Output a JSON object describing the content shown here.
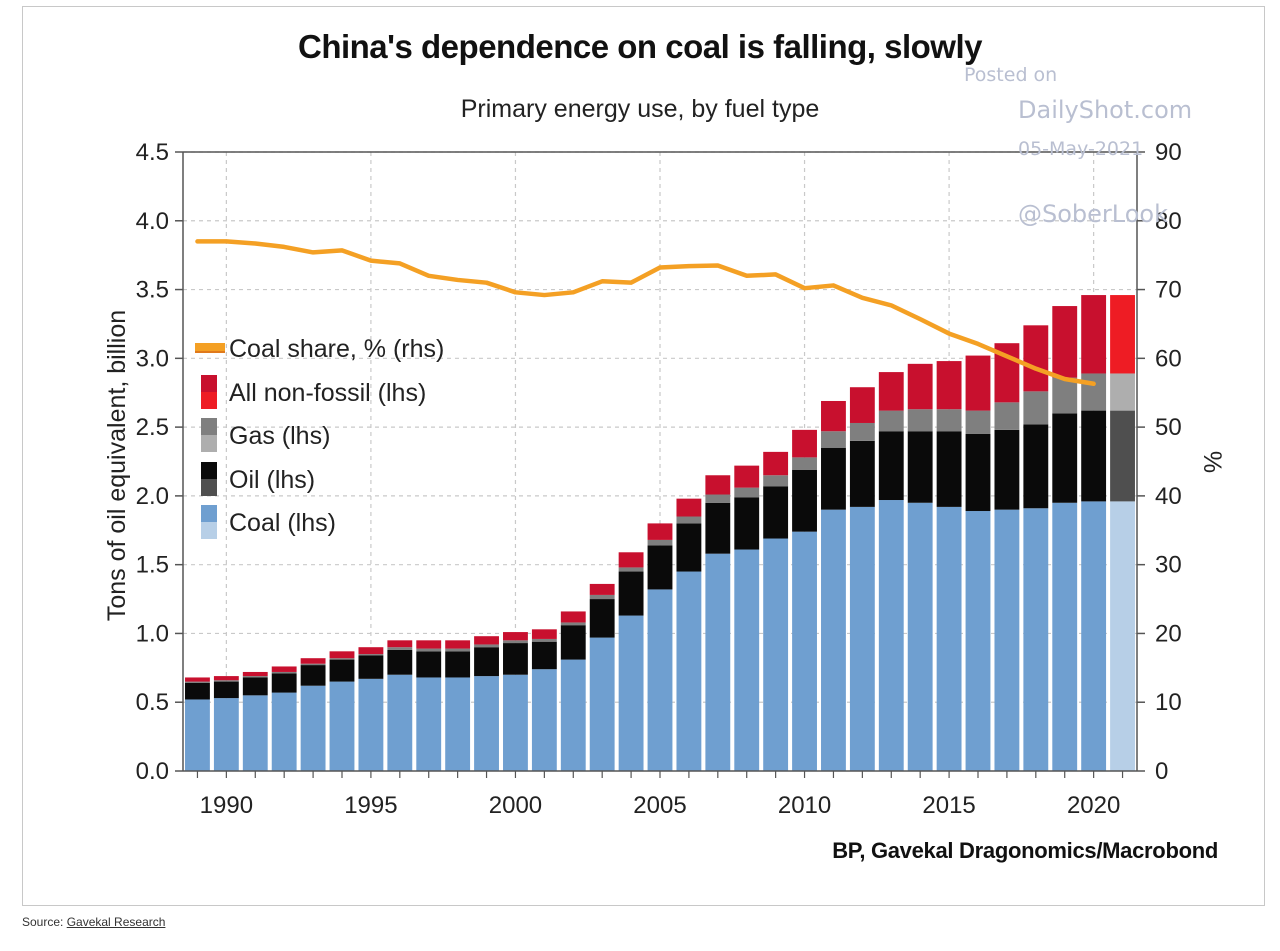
{
  "header": {
    "title": "China's dependence on coal is falling, slowly",
    "subtitle": "Primary energy use, by fuel type"
  },
  "watermark": {
    "line1": "Posted on",
    "line2": "DailyShot.com",
    "line3": "05-May-2021",
    "line4": "@SoberLook"
  },
  "credit": "BP, Gavekal Dragonomics/Macrobond",
  "footer": {
    "prefix": "Source: ",
    "link_text": "Gavekal Research"
  },
  "colors": {
    "coal": "#6f9fd0",
    "coal_proj": "#b7cfe7",
    "oil": "#0a0a0a",
    "oil_proj": "#4f4f4f",
    "gas": "#7f7f7f",
    "gas_proj": "#aeaeae",
    "nonfossil": "#c8102e",
    "nonfossil_proj": "#ee1c24",
    "coal_share": "#f4a024",
    "grid": "#c9c9c9"
  },
  "chart_data": {
    "type": "bar",
    "stacked": true,
    "title": "China's dependence on coal is falling, slowly",
    "subtitle": "Primary energy use, by fuel type",
    "ylabel": "Tons of oil equivalent, billion",
    "y2label": "%",
    "ylim": [
      0,
      4.5
    ],
    "y2lim": [
      0,
      90
    ],
    "yticks": [
      "0.0",
      "0.5",
      "1.0",
      "1.5",
      "2.0",
      "2.5",
      "3.0",
      "3.5",
      "4.0",
      "4.5"
    ],
    "y2ticks": [
      "0",
      "10",
      "20",
      "30",
      "40",
      "50",
      "60",
      "70",
      "80",
      "90"
    ],
    "xticks": [
      "1990",
      "1995",
      "2000",
      "2005",
      "2010",
      "2015",
      "2020"
    ],
    "grid": true,
    "legend_position": "left",
    "years": [
      1989,
      1990,
      1991,
      1992,
      1993,
      1994,
      1995,
      1996,
      1997,
      1998,
      1999,
      2000,
      2001,
      2002,
      2003,
      2004,
      2005,
      2006,
      2007,
      2008,
      2009,
      2010,
      2011,
      2012,
      2013,
      2014,
      2015,
      2016,
      2017,
      2018,
      2019,
      2020,
      2021
    ],
    "series": [
      {
        "name": "Coal (lhs)",
        "key": "coal",
        "axis": "left",
        "values": [
          0.52,
          0.53,
          0.55,
          0.57,
          0.62,
          0.65,
          0.67,
          0.7,
          0.68,
          0.68,
          0.69,
          0.7,
          0.74,
          0.81,
          0.97,
          1.13,
          1.32,
          1.45,
          1.58,
          1.61,
          1.69,
          1.74,
          1.9,
          1.92,
          1.97,
          1.95,
          1.92,
          1.89,
          1.9,
          1.91,
          1.95,
          1.96,
          1.96
        ]
      },
      {
        "name": "Oil (lhs)",
        "key": "oil",
        "axis": "left",
        "values": [
          0.12,
          0.12,
          0.13,
          0.14,
          0.15,
          0.16,
          0.17,
          0.18,
          0.19,
          0.19,
          0.21,
          0.23,
          0.2,
          0.25,
          0.28,
          0.32,
          0.32,
          0.35,
          0.37,
          0.38,
          0.38,
          0.45,
          0.45,
          0.48,
          0.5,
          0.52,
          0.55,
          0.56,
          0.58,
          0.61,
          0.65,
          0.66,
          0.66
        ]
      },
      {
        "name": "Gas (lhs)",
        "key": "gas",
        "axis": "left",
        "values": [
          0.01,
          0.01,
          0.01,
          0.01,
          0.01,
          0.01,
          0.01,
          0.02,
          0.02,
          0.02,
          0.02,
          0.02,
          0.02,
          0.02,
          0.03,
          0.03,
          0.04,
          0.05,
          0.06,
          0.07,
          0.08,
          0.09,
          0.12,
          0.13,
          0.15,
          0.16,
          0.16,
          0.17,
          0.2,
          0.24,
          0.26,
          0.27,
          0.27
        ]
      },
      {
        "name": "All non-fossil (lhs)",
        "key": "nonfossil",
        "axis": "left",
        "values": [
          0.03,
          0.03,
          0.03,
          0.04,
          0.04,
          0.05,
          0.05,
          0.05,
          0.06,
          0.06,
          0.06,
          0.06,
          0.07,
          0.08,
          0.08,
          0.11,
          0.12,
          0.13,
          0.14,
          0.16,
          0.17,
          0.2,
          0.22,
          0.26,
          0.28,
          0.33,
          0.35,
          0.4,
          0.43,
          0.48,
          0.52,
          0.57,
          0.57
        ]
      },
      {
        "name": "Coal share, % (rhs)",
        "key": "coal_share",
        "axis": "right",
        "type": "line",
        "values": [
          77,
          77,
          76.7,
          76.2,
          75.4,
          75.7,
          74.2,
          73.8,
          72,
          71.4,
          71,
          69.6,
          69.2,
          69.6,
          71.2,
          71,
          73.2,
          73.4,
          73.5,
          72,
          72.2,
          70.2,
          70.6,
          68.8,
          67.7,
          65.7,
          63.6,
          62.1,
          60.3,
          58.5,
          57,
          56.3,
          null
        ]
      }
    ],
    "projected_from_year": 2021,
    "legend": [
      {
        "label": "Coal share, % (rhs)",
        "key": "coal_share"
      },
      {
        "label": "All non-fossil (lhs)",
        "key": "nonfossil"
      },
      {
        "label": "Gas (lhs)",
        "key": "gas"
      },
      {
        "label": "Oil (lhs)",
        "key": "oil"
      },
      {
        "label": "Coal (lhs)",
        "key": "coal"
      }
    ]
  }
}
